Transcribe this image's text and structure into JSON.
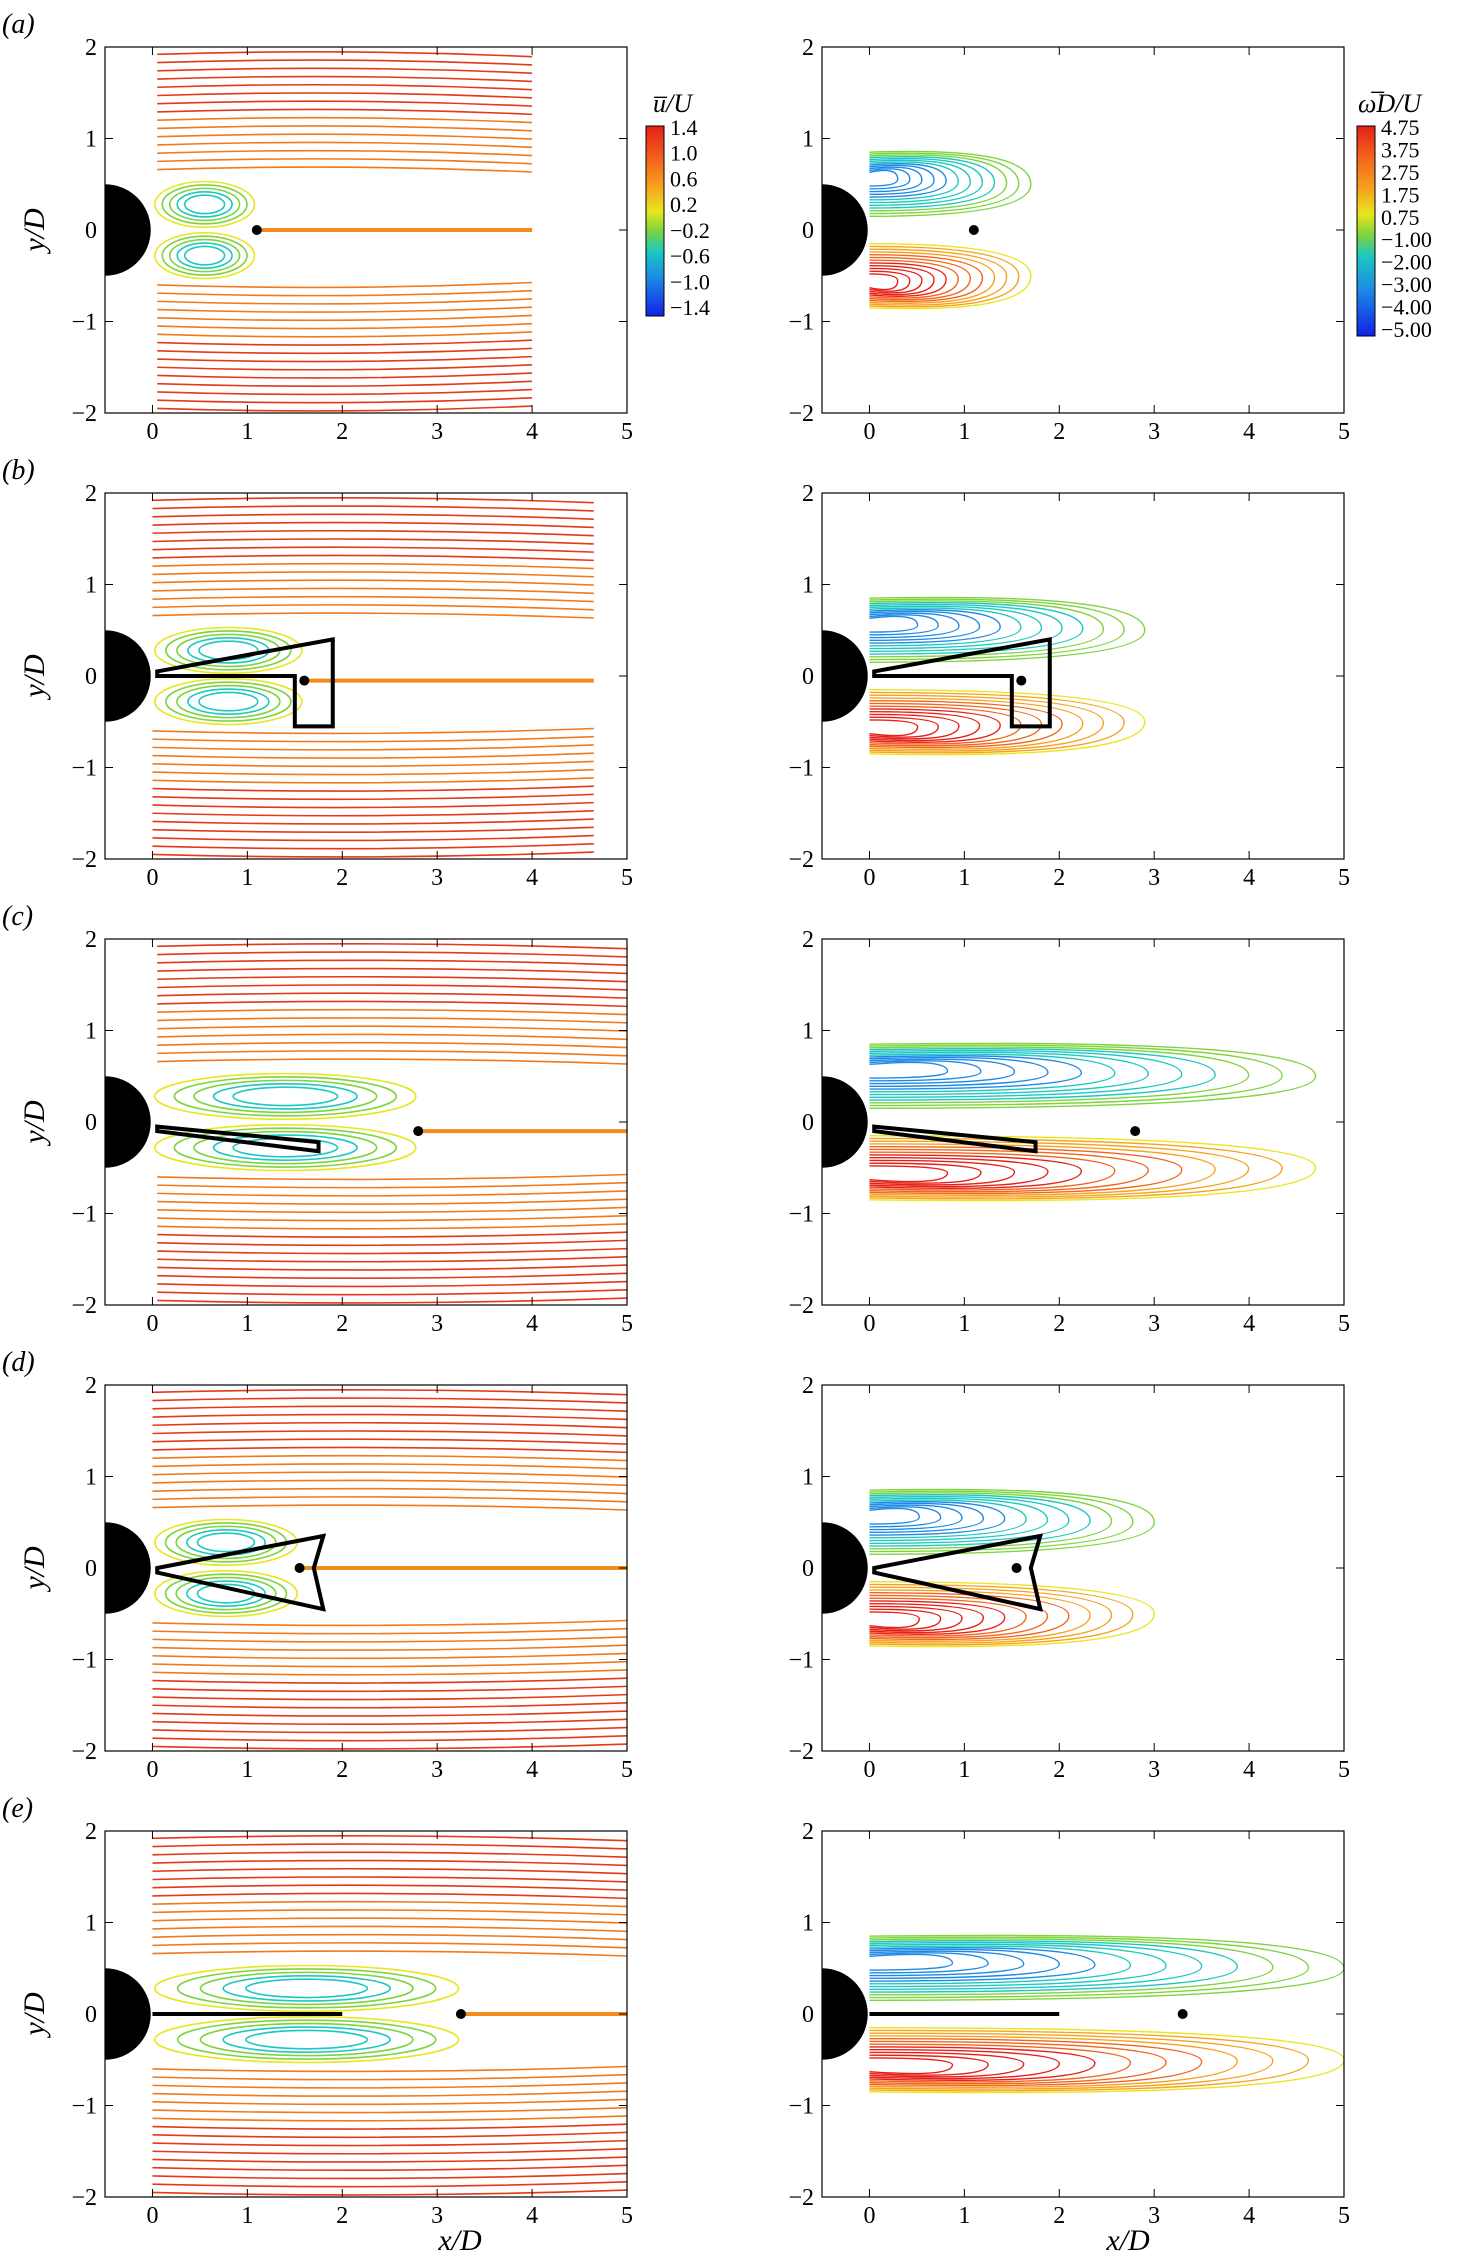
{
  "figure": {
    "panel_labels": [
      "(a)",
      "(b)",
      "(c)",
      "(d)",
      "(e)"
    ],
    "y_axis_label": "y/D",
    "x_axis_label": "x/D",
    "colorbar_u": {
      "title": "u̅/U",
      "ticks": [
        "1.4",
        "1.0",
        "0.6",
        "0.2",
        "−0.2",
        "−0.6",
        "−1.0",
        "−1.4"
      ]
    },
    "colorbar_w": {
      "title": "ω̅D/U",
      "ticks": [
        "4.75",
        "3.75",
        "2.75",
        "1.75",
        "0.75",
        "−1.00",
        "−2.00",
        "−3.00",
        "−4.00",
        "−5.00"
      ]
    }
  },
  "chart_data": [
    {
      "type": "streamline",
      "panel": "(a)",
      "column": "mean streamwise velocity",
      "xlim": [
        -0.5,
        5
      ],
      "ylim": [
        -2,
        2
      ],
      "xticks": [
        0,
        1,
        2,
        3,
        4,
        5
      ],
      "yticks": [
        -2,
        -1,
        0,
        1,
        2
      ],
      "stagnation_point": [
        1.1,
        0.0
      ],
      "stream_extent_x": [
        0.05,
        4.0
      ],
      "body": "none"
    },
    {
      "type": "contour",
      "panel": "(a)",
      "column": "mean vorticity",
      "xlim": [
        -0.5,
        5
      ],
      "ylim": [
        -2,
        2
      ],
      "xticks": [
        0,
        1,
        2,
        3,
        4,
        5
      ],
      "yticks": [
        -2,
        -1,
        0,
        1,
        2
      ],
      "stagnation_point": [
        1.1,
        0.0
      ],
      "contour_extent_x": [
        0.0,
        1.7
      ],
      "body": "none"
    },
    {
      "type": "streamline",
      "panel": "(b)",
      "column": "mean streamwise velocity",
      "xlim": [
        -0.5,
        5
      ],
      "ylim": [
        -2,
        2
      ],
      "xticks": [
        0,
        1,
        2,
        3,
        4,
        5
      ],
      "yticks": [
        -2,
        -1,
        0,
        1,
        2
      ],
      "stagnation_point": [
        1.6,
        -0.05
      ],
      "stream_extent_x": [
        0.0,
        4.65
      ],
      "body": "deformed plate"
    },
    {
      "type": "contour",
      "panel": "(b)",
      "column": "mean vorticity",
      "xlim": [
        -0.5,
        5
      ],
      "ylim": [
        -2,
        2
      ],
      "xticks": [
        0,
        1,
        2,
        3,
        4,
        5
      ],
      "yticks": [
        -2,
        -1,
        0,
        1,
        2
      ],
      "stagnation_point": [
        1.6,
        -0.05
      ],
      "contour_extent_x": [
        0.0,
        2.9
      ],
      "body": "deformed plate"
    },
    {
      "type": "streamline",
      "panel": "(c)",
      "column": "mean streamwise velocity",
      "xlim": [
        -0.5,
        5
      ],
      "ylim": [
        -2,
        2
      ],
      "xticks": [
        0,
        1,
        2,
        3,
        4,
        5
      ],
      "yticks": [
        -2,
        -1,
        0,
        1,
        2
      ],
      "stagnation_point": [
        2.8,
        -0.1
      ],
      "stream_extent_x": [
        0.05,
        5.0
      ],
      "body": "deflected plate"
    },
    {
      "type": "contour",
      "panel": "(c)",
      "column": "mean vorticity",
      "xlim": [
        -0.5,
        5
      ],
      "ylim": [
        -2,
        2
      ],
      "xticks": [
        0,
        1,
        2,
        3,
        4,
        5
      ],
      "yticks": [
        -2,
        -1,
        0,
        1,
        2
      ],
      "stagnation_point": [
        2.8,
        -0.1
      ],
      "contour_extent_x": [
        0.0,
        4.7
      ],
      "body": "deflected plate"
    },
    {
      "type": "streamline",
      "panel": "(d)",
      "column": "mean streamwise velocity",
      "xlim": [
        -0.5,
        5
      ],
      "ylim": [
        -2,
        2
      ],
      "xticks": [
        0,
        1,
        2,
        3,
        4,
        5
      ],
      "yticks": [
        -2,
        -1,
        0,
        1,
        2
      ],
      "stagnation_point": [
        1.55,
        0.0
      ],
      "stream_extent_x": [
        0.0,
        5.0
      ],
      "body": "splayed plate"
    },
    {
      "type": "contour",
      "panel": "(d)",
      "column": "mean vorticity",
      "xlim": [
        -0.5,
        5
      ],
      "ylim": [
        -2,
        2
      ],
      "xticks": [
        0,
        1,
        2,
        3,
        4,
        5
      ],
      "yticks": [
        -2,
        -1,
        0,
        1,
        2
      ],
      "stagnation_point": [
        1.55,
        0.0
      ],
      "contour_extent_x": [
        0.0,
        3.0
      ],
      "body": "splayed plate"
    },
    {
      "type": "streamline",
      "panel": "(e)",
      "column": "mean streamwise velocity",
      "xlim": [
        -0.5,
        5
      ],
      "ylim": [
        -2,
        2
      ],
      "xticks": [
        0,
        1,
        2,
        3,
        4,
        5
      ],
      "yticks": [
        -2,
        -1,
        0,
        1,
        2
      ],
      "stagnation_point": [
        3.25,
        0.0
      ],
      "stream_extent_x": [
        0.0,
        5.0
      ],
      "body": "rigid splitter plate"
    },
    {
      "type": "contour",
      "panel": "(e)",
      "column": "mean vorticity",
      "xlim": [
        -0.5,
        5
      ],
      "ylim": [
        -2,
        2
      ],
      "xticks": [
        0,
        1,
        2,
        3,
        4,
        5
      ],
      "yticks": [
        -2,
        -1,
        0,
        1,
        2
      ],
      "stagnation_point": [
        3.3,
        0.0
      ],
      "contour_extent_x": [
        0.0,
        5.0
      ],
      "body": "rigid splitter plate"
    }
  ]
}
